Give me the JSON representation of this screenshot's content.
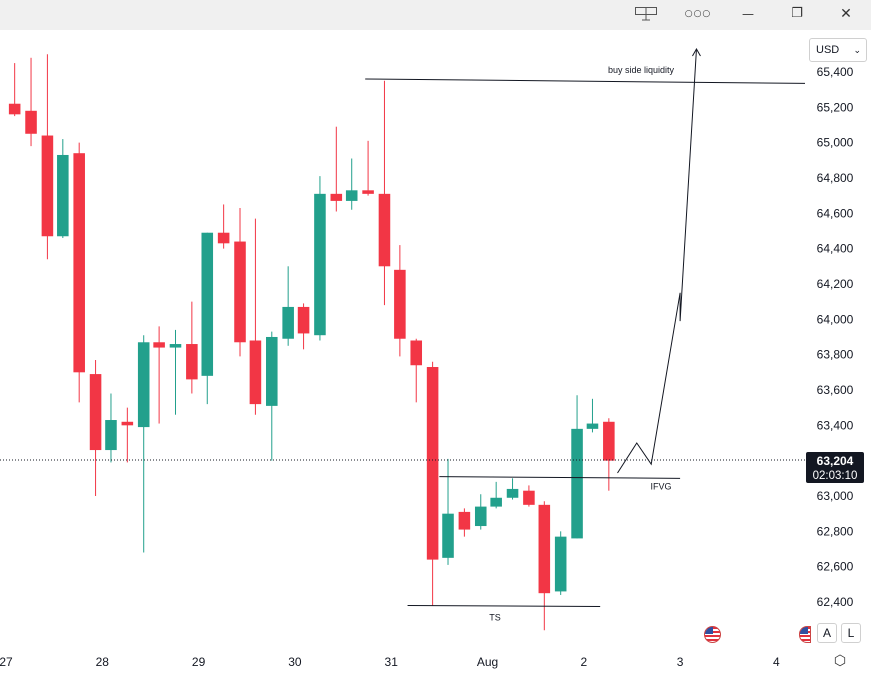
{
  "window": {
    "icons": [
      "layout-icon",
      "more-icon",
      "minimize-icon",
      "restore-icon",
      "close-icon"
    ],
    "more_glyph": "○○○",
    "minimize_glyph": "—",
    "restore_glyph": "❐",
    "close_glyph": "✕"
  },
  "currency": {
    "label": "USD",
    "caret": "⌄"
  },
  "badges": {
    "auto": "A",
    "log": "L"
  },
  "price_label": {
    "price": "63,204",
    "countdown": "02:03:10"
  },
  "colors": {
    "up": "#22a08c",
    "down": "#f23645",
    "axis_text": "#131722",
    "price_tag": "#131722"
  },
  "chart_data": {
    "type": "candlestick",
    "title": "",
    "ylim": [
      62200,
      65600
    ],
    "y_ticks": [
      62400,
      62600,
      62800,
      63000,
      63200,
      63400,
      63600,
      63800,
      64000,
      64200,
      64400,
      64600,
      64800,
      65000,
      65200,
      65400
    ],
    "y_tick_labels": [
      "62,400",
      "62,600",
      "62,800",
      "63,000",
      "63,200",
      "63,400",
      "63,600",
      "63,800",
      "64,000",
      "64,200",
      "64,400",
      "64,600",
      "64,800",
      "65,000",
      "65,200",
      "65,400"
    ],
    "x_labels": [
      {
        "label": "27",
        "day": 27.0
      },
      {
        "label": "28",
        "day": 28.0
      },
      {
        "label": "29",
        "day": 29.0
      },
      {
        "label": "30",
        "day": 30.0
      },
      {
        "label": "31",
        "day": 31.0
      },
      {
        "label": "Aug",
        "day": 32.0
      },
      {
        "label": "2",
        "day": 33.0
      },
      {
        "label": "3",
        "day": 34.0
      },
      {
        "label": "4",
        "day": 35.0
      }
    ],
    "candle_interval_days": 0.1667,
    "candles": [
      {
        "t": 27.09,
        "o": 65220,
        "h": 65450,
        "l": 65150,
        "c": 65160
      },
      {
        "t": 27.26,
        "o": 65180,
        "h": 65480,
        "l": 64980,
        "c": 65050
      },
      {
        "t": 27.43,
        "o": 65040,
        "h": 65500,
        "l": 64340,
        "c": 64470
      },
      {
        "t": 27.59,
        "o": 64470,
        "h": 65020,
        "l": 64460,
        "c": 64930
      },
      {
        "t": 27.76,
        "o": 64940,
        "h": 65000,
        "l": 63530,
        "c": 63700
      },
      {
        "t": 27.93,
        "o": 63690,
        "h": 63770,
        "l": 63000,
        "c": 63260
      },
      {
        "t": 28.09,
        "o": 63260,
        "h": 63580,
        "l": 63190,
        "c": 63430
      },
      {
        "t": 28.26,
        "o": 63420,
        "h": 63500,
        "l": 63190,
        "c": 63400
      },
      {
        "t": 28.43,
        "o": 63390,
        "h": 63910,
        "l": 62680,
        "c": 63870
      },
      {
        "t": 28.59,
        "o": 63870,
        "h": 63960,
        "l": 63410,
        "c": 63840
      },
      {
        "t": 28.76,
        "o": 63840,
        "h": 63940,
        "l": 63460,
        "c": 63860
      },
      {
        "t": 28.93,
        "o": 63860,
        "h": 64100,
        "l": 63580,
        "c": 63660
      },
      {
        "t": 29.09,
        "o": 63680,
        "h": 64490,
        "l": 63520,
        "c": 64490
      },
      {
        "t": 29.26,
        "o": 64490,
        "h": 64650,
        "l": 64400,
        "c": 64430
      },
      {
        "t": 29.43,
        "o": 64440,
        "h": 64630,
        "l": 63790,
        "c": 63870
      },
      {
        "t": 29.59,
        "o": 63880,
        "h": 64570,
        "l": 63460,
        "c": 63520
      },
      {
        "t": 29.76,
        "o": 63510,
        "h": 63930,
        "l": 63200,
        "c": 63900
      },
      {
        "t": 29.93,
        "o": 63890,
        "h": 64300,
        "l": 63850,
        "c": 64070
      },
      {
        "t": 30.09,
        "o": 64070,
        "h": 64090,
        "l": 63830,
        "c": 63920
      },
      {
        "t": 30.26,
        "o": 63910,
        "h": 64810,
        "l": 63880,
        "c": 64710
      },
      {
        "t": 30.43,
        "o": 64710,
        "h": 65090,
        "l": 64610,
        "c": 64670
      },
      {
        "t": 30.59,
        "o": 64670,
        "h": 64910,
        "l": 64620,
        "c": 64730
      },
      {
        "t": 30.76,
        "o": 64730,
        "h": 65010,
        "l": 64700,
        "c": 64710
      },
      {
        "t": 30.93,
        "o": 64710,
        "h": 65350,
        "l": 64080,
        "c": 64300
      },
      {
        "t": 31.09,
        "o": 64280,
        "h": 64420,
        "l": 63790,
        "c": 63890
      },
      {
        "t": 31.26,
        "o": 63880,
        "h": 63890,
        "l": 63530,
        "c": 63740
      },
      {
        "t": 31.43,
        "o": 63730,
        "h": 63760,
        "l": 62380,
        "c": 62640
      },
      {
        "t": 31.59,
        "o": 62650,
        "h": 63210,
        "l": 62610,
        "c": 62900
      },
      {
        "t": 31.76,
        "o": 62910,
        "h": 62930,
        "l": 62770,
        "c": 62810
      },
      {
        "t": 31.93,
        "o": 62830,
        "h": 63010,
        "l": 62810,
        "c": 62940
      },
      {
        "t": 32.09,
        "o": 62940,
        "h": 63080,
        "l": 62930,
        "c": 62990
      },
      {
        "t": 32.26,
        "o": 62990,
        "h": 63100,
        "l": 62980,
        "c": 63040
      },
      {
        "t": 32.43,
        "o": 63030,
        "h": 63060,
        "l": 62940,
        "c": 62950
      },
      {
        "t": 32.59,
        "o": 62950,
        "h": 62970,
        "l": 62240,
        "c": 62450
      },
      {
        "t": 32.76,
        "o": 62460,
        "h": 62800,
        "l": 62440,
        "c": 62770
      },
      {
        "t": 32.93,
        "o": 62760,
        "h": 63570,
        "l": 62760,
        "c": 63380
      },
      {
        "t": 33.09,
        "o": 63380,
        "h": 63550,
        "l": 63360,
        "c": 63410
      },
      {
        "t": 33.26,
        "o": 63420,
        "h": 63440,
        "l": 63030,
        "c": 63200
      }
    ],
    "current_price": 63204,
    "annotations": [
      {
        "type": "hline",
        "label": "buy side liquidity",
        "x1": 30.73,
        "y1": 65360,
        "x2": 35.3,
        "y2": 65335
      },
      {
        "type": "hline",
        "label": "IFVG",
        "x1": 31.5,
        "y1": 63110,
        "x2": 34.0,
        "y2": 63100
      },
      {
        "type": "hline",
        "label": "TS",
        "x1": 31.17,
        "y1": 62380,
        "x2": 33.17,
        "y2": 62375
      },
      {
        "type": "projection",
        "points": [
          [
            33.35,
            63130
          ],
          [
            33.55,
            63300
          ],
          [
            33.7,
            63180
          ],
          [
            34.0,
            64150
          ],
          [
            34.0,
            63990
          ],
          [
            34.17,
            65530
          ]
        ]
      }
    ]
  }
}
